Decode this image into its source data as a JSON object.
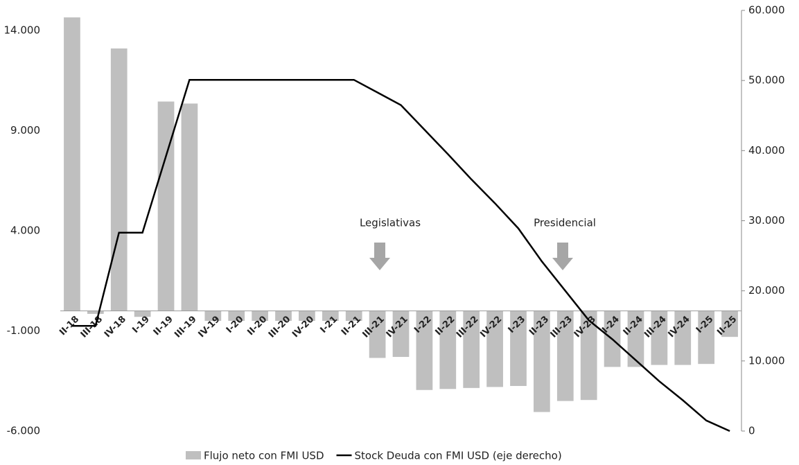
{
  "chart_data": {
    "type": "bar",
    "categories": [
      "II-18",
      "III-18",
      "IV-18",
      "I-19",
      "II-19",
      "III-19",
      "IV-19",
      "I-20",
      "II-20",
      "III-20",
      "IV-20",
      "I-21",
      "II-21",
      "III-21",
      "IV-21",
      "I-22",
      "II-22",
      "III-22",
      "IV-22",
      "I-23",
      "II-23",
      "III-23",
      "IV-23",
      "I-24",
      "II-24",
      "III-24",
      "IV-24",
      "I-25",
      "II-25"
    ],
    "series": [
      {
        "name": "Flujo neto con FMI USD",
        "type": "bar",
        "color": "#bfbfbf",
        "values": [
          14650,
          -150,
          13100,
          -300,
          10450,
          10350,
          -500,
          -500,
          -500,
          -500,
          -500,
          -500,
          -500,
          -2350,
          -2300,
          -3950,
          -3900,
          -3850,
          -3800,
          -3750,
          -5050,
          -4500,
          -4450,
          -2800,
          -2800,
          -2700,
          -2700,
          -2650,
          -1300
        ]
      },
      {
        "name": "Stock Deuda con FMI USD (eje derecho)",
        "type": "line",
        "color": "#000000",
        "axis": "y2",
        "values": [
          15000,
          15000,
          28300,
          28300,
          39200,
          50100,
          50100,
          50100,
          50100,
          50100,
          50100,
          50100,
          50100,
          48300,
          46500,
          43000,
          39500,
          35900,
          32500,
          28900,
          24200,
          20000,
          15800,
          13100,
          10100,
          7100,
          4400,
          1500,
          0
        ]
      }
    ],
    "ylim": [
      -6000,
      15000
    ],
    "yticks": [
      {
        "value": -6000,
        "label": "-6.000"
      },
      {
        "value": -1000,
        "label": "-1.000"
      },
      {
        "value": 4000,
        "label": "4.000"
      },
      {
        "value": 9000,
        "label": "9.000"
      },
      {
        "value": 14000,
        "label": "14.000"
      }
    ],
    "y2lim": [
      0,
      60000
    ],
    "y2ticks": [
      0,
      {
        "value": 10000,
        "label": "10.000"
      },
      {
        "value": 20000,
        "label": "20.000"
      },
      {
        "value": 30000,
        "label": "30.000"
      },
      {
        "value": 40000,
        "label": "40.000"
      },
      {
        "value": 50000,
        "label": "50.000"
      },
      {
        "value": 60000,
        "label": "60.000"
      }
    ],
    "annotations": [
      {
        "text": "Legislativas"
      },
      {
        "text": "Presidencial"
      }
    ],
    "grid": false,
    "legend": "bottom"
  }
}
